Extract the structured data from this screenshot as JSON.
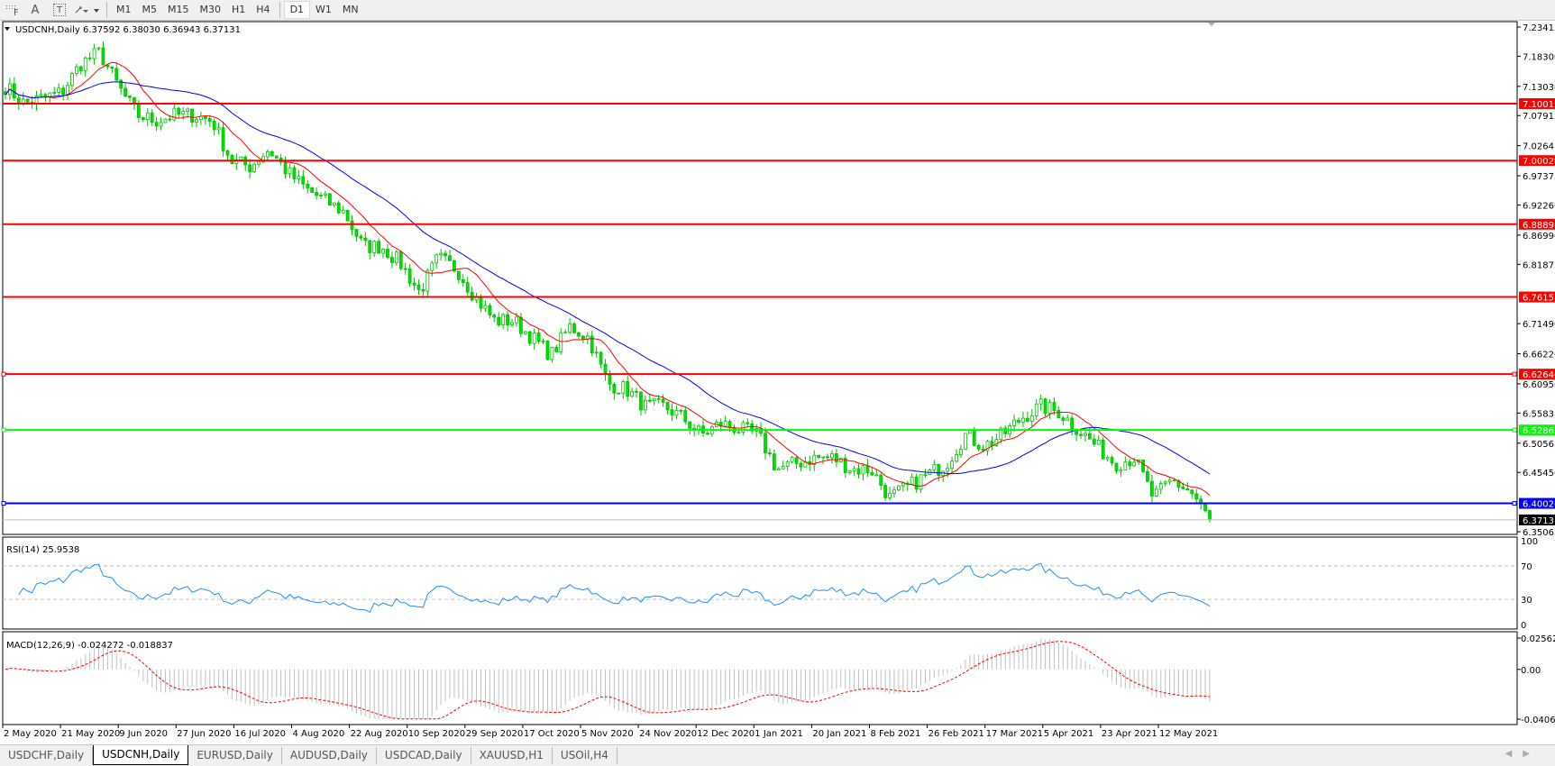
{
  "toolbar": {
    "icons": [
      "period-separator-icon",
      "text-icon",
      "text-label-icon",
      "shapes-icon"
    ],
    "icon_glyphs": {
      "text": "A",
      "label": "T"
    },
    "timeframes": [
      "M1",
      "M5",
      "M15",
      "M30",
      "H1",
      "H4",
      "D1",
      "W1",
      "MN"
    ],
    "active_timeframe": "D1"
  },
  "chart": {
    "header": "USDCNH,Daily  6.37592 6.38030 6.36943 6.37131",
    "symbol": "USDCNH,Daily",
    "ohlc": {
      "open": "6.37592",
      "high": "6.38030",
      "low": "6.36943",
      "close": "6.37131"
    },
    "price_axis_labels": [
      "7.23415",
      "7.18300",
      "7.13030",
      "7.07915",
      "7.02645",
      "6.97375",
      "6.92260",
      "6.86990",
      "6.81875",
      "6.71490",
      "6.66220",
      "6.60950",
      "6.55835",
      "6.50565",
      "6.45450",
      "6.35065"
    ],
    "horizontal_lines": [
      {
        "price": "7.10011",
        "color": "#ff0000"
      },
      {
        "price": "7.00029",
        "color": "#ff0000"
      },
      {
        "price": "6.88897",
        "color": "#ff0000"
      },
      {
        "price": "6.76157",
        "color": "#ff0000"
      },
      {
        "price": "6.62646",
        "color": "#ff0000"
      },
      {
        "price": "6.52865",
        "color": "#00ff00"
      },
      {
        "price": "6.40026",
        "color": "#0000ff"
      }
    ],
    "current_price": {
      "price": "6.37131",
      "color": "#000000"
    },
    "date_labels": [
      "2 May 2020",
      "21 May 2020",
      "9 Jun 2020",
      "27 Jun 2020",
      "16 Jul 2020",
      "4 Aug 2020",
      "22 Aug 2020",
      "10 Sep 2020",
      "29 Sep 2020",
      "17 Oct 2020",
      "5 Nov 2020",
      "24 Nov 2020",
      "12 Dec 2020",
      "1 Jan 2021",
      "20 Jan 2021",
      "8 Feb 2021",
      "26 Feb 2021",
      "17 Mar 2021",
      "5 Apr 2021",
      "23 Apr 2021",
      "12 May 2021"
    ],
    "colors": {
      "candle": "#00ff00",
      "ma_fast": "#ff0000",
      "ma_slow": "#0000ff",
      "rsi": "#1e90ff",
      "macd_hist": "#c0c0c0",
      "macd_signal": "#ff0000"
    }
  },
  "rsi": {
    "label": "RSI(14) 25.9538",
    "levels": [
      "100",
      "70",
      "30",
      "0"
    ]
  },
  "macd": {
    "label": "MACD(12,26,9) -0.024272 -0.018837",
    "axis_labels": [
      "0.025623",
      "0.00",
      "-0.040687"
    ]
  },
  "chart_data": {
    "type": "candlestick",
    "price_range": [
      6.35065,
      7.23415
    ],
    "close_samples": [
      7.13,
      7.1,
      7.11,
      7.12,
      7.17,
      7.19,
      7.13,
      7.08,
      7.07,
      7.08,
      7.08,
      7.07,
      7.0,
      6.99,
      7.02,
      6.98,
      6.95,
      6.93,
      6.91,
      6.85,
      6.85,
      6.82,
      6.77,
      6.83,
      6.81,
      6.76,
      6.72,
      6.72,
      6.69,
      6.66,
      6.71,
      6.69,
      6.61,
      6.6,
      6.57,
      6.57,
      6.55,
      6.52,
      6.54,
      6.53,
      6.52,
      6.46,
      6.47,
      6.48,
      6.48,
      6.46,
      6.46,
      6.41,
      6.43,
      6.45,
      6.47,
      6.52,
      6.5,
      6.52,
      6.55,
      6.57,
      6.56,
      6.53,
      6.5,
      6.47,
      6.48,
      6.41,
      6.44,
      6.42,
      6.37131
    ]
  },
  "tabs": [
    "USDCHF,Daily",
    "USDCNH,Daily",
    "EURUSD,Daily",
    "AUDUSD,Daily",
    "USDCAD,Daily",
    "XAUUSD,H1",
    "USOil,H4"
  ],
  "active_tab": "USDCNH,Daily"
}
